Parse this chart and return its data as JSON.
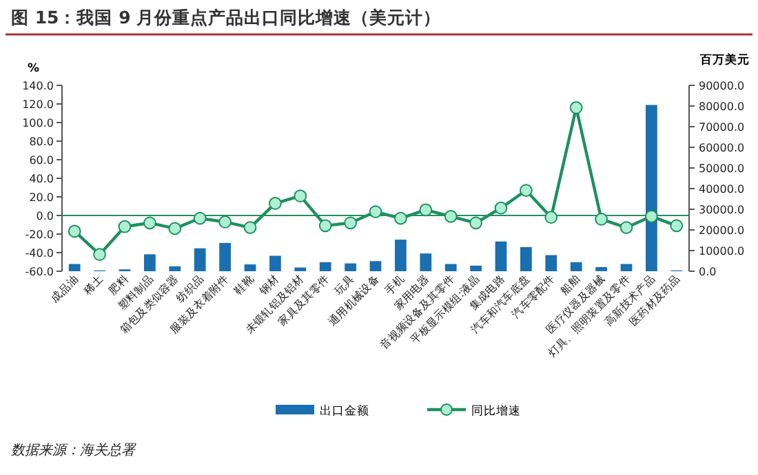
{
  "chart_data": {
    "type": "bar",
    "title": "图 15：我国 9 月份重点产品出口同比增速（美元计）",
    "ylabel": "%",
    "y2label": "百万美元",
    "categories": [
      "成品油",
      "稀土",
      "肥料",
      "塑料制品",
      "箱包及类似容器",
      "纺织品",
      "服装及衣着附件",
      "鞋靴",
      "钢材",
      "未锻轧铝及铝材",
      "家具及其零件",
      "玩具",
      "通用机械设备",
      "手机",
      "家用电器",
      "音视频设备及其零件",
      "平板显示模组:液晶",
      "集成电路",
      "汽车和汽车底盘",
      "汽车零配件",
      "船舶",
      "医疗仪器及器械",
      "灯具、照明装置及零件",
      "高新技术产品",
      "医药材及药品"
    ],
    "series": [
      {
        "name": "出口金额",
        "axis": "y2",
        "color": "#1a6fb0",
        "values": [
          3500,
          400,
          900,
          8200,
          2400,
          11100,
          13700,
          3300,
          7500,
          1800,
          4400,
          3800,
          4900,
          15300,
          8600,
          3500,
          2700,
          14400,
          11700,
          7800,
          4400,
          2000,
          3500,
          80500,
          400
        ]
      },
      {
        "name": "同比增速",
        "type": "line",
        "color": "#1f9060",
        "marker": "circle",
        "values": [
          -17,
          -42,
          -12,
          -8,
          -14,
          -3,
          -7,
          -13,
          13,
          21,
          -11,
          -8,
          4,
          -3,
          6,
          -1,
          -8,
          8,
          27,
          -2,
          116,
          -4,
          -13,
          -1,
          -11
        ]
      }
    ],
    "ylim": [
      -60,
      140
    ],
    "yticks": [
      {
        "value": -60,
        "label": "-60.0"
      },
      {
        "value": -40,
        "label": "-40.0"
      },
      {
        "value": -20,
        "label": "-20.0"
      },
      {
        "value": 0,
        "label": "0.0"
      },
      {
        "value": 20,
        "label": "20.0"
      },
      {
        "value": 40,
        "label": "40.0"
      },
      {
        "value": 60,
        "label": "60.0"
      },
      {
        "value": 80,
        "label": "80.0"
      },
      {
        "value": 100,
        "label": "100.0"
      },
      {
        "value": 120,
        "label": "120.0"
      },
      {
        "value": 140,
        "label": "140.0"
      }
    ],
    "y2lim": [
      0,
      90000
    ],
    "y2ticks": [
      {
        "value": 0,
        "label": "0.0"
      },
      {
        "value": 10000,
        "label": "10000.0"
      },
      {
        "value": 20000,
        "label": "20000.0"
      },
      {
        "value": 30000,
        "label": "30000.0"
      },
      {
        "value": 40000,
        "label": "40000.0"
      },
      {
        "value": 50000,
        "label": "50000.0"
      },
      {
        "value": 60000,
        "label": "60000.0"
      },
      {
        "value": 70000,
        "label": "70000.0"
      },
      {
        "value": 80000,
        "label": "80000.0"
      },
      {
        "value": 90000,
        "label": "90000.0"
      }
    ],
    "ref_lines": [
      {
        "axis": "y",
        "value": 0,
        "color": "#1f9060"
      }
    ],
    "grid": false,
    "legend": "bottom",
    "annotations": [
      "数据来源：海关总署"
    ]
  }
}
